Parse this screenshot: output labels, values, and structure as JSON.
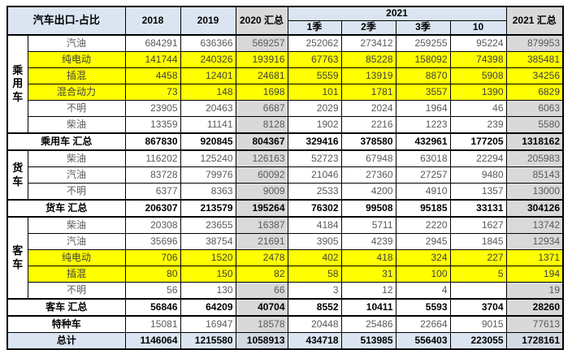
{
  "colors": {
    "header_blue": "#dbe5f1",
    "summary_gray": "#d9d9d9",
    "highlight_yellow": "#ffff00",
    "grand_total_blue": "#dbe5f1",
    "grand_total_gray_blue": "#d3d9e2",
    "border_black": "#000000",
    "body_text_gray": "#595959"
  },
  "chart_data": {
    "type": "table",
    "title": "汽车出口-占比",
    "header": {
      "title_cell": "汽车出口-占比",
      "year_2018": "2018",
      "year_2019": "2019",
      "total_2020": "2020 汇总",
      "group_2021": "2021",
      "subcols_2021": [
        "1季",
        "2季",
        "3季",
        "10"
      ],
      "total_2021": "2021 汇总"
    },
    "column_keys": [
      "2018",
      "2019",
      "2020汇总",
      "2021-1季",
      "2021-2季",
      "2021-3季",
      "2021-10",
      "2021汇总"
    ],
    "sections": [
      {
        "group": "乘用车",
        "rows": [
          {
            "label": "汽油",
            "highlight": false,
            "values": [
              "684291",
              "636366",
              "569257",
              "252062",
              "273412",
              "259255",
              "95224",
              "879953"
            ]
          },
          {
            "label": "纯电动",
            "highlight": true,
            "values": [
              "141744",
              "240326",
              "193916",
              "67763",
              "85228",
              "158092",
              "74398",
              "385481"
            ]
          },
          {
            "label": "插混",
            "highlight": true,
            "values": [
              "4458",
              "12401",
              "24681",
              "5559",
              "13919",
              "8870",
              "5908",
              "34256"
            ]
          },
          {
            "label": "混合动力",
            "highlight": true,
            "values": [
              "73",
              "148",
              "1698",
              "101",
              "1781",
              "3557",
              "1390",
              "6829"
            ]
          },
          {
            "label": "不明",
            "highlight": false,
            "values": [
              "23905",
              "20463",
              "6687",
              "2029",
              "2024",
              "1964",
              "46",
              "6063"
            ]
          },
          {
            "label": "柴油",
            "highlight": false,
            "values": [
              "13359",
              "11141",
              "8128",
              "1902",
              "2216",
              "1223",
              "239",
              "5580"
            ]
          }
        ],
        "total": {
          "label": "乘用车 汇总",
          "values": [
            "867830",
            "920845",
            "804367",
            "329416",
            "378580",
            "432961",
            "177205",
            "1318162"
          ]
        }
      },
      {
        "group": "货车",
        "rows": [
          {
            "label": "柴油",
            "highlight": false,
            "values": [
              "116202",
              "125240",
              "126163",
              "52723",
              "67948",
              "63018",
              "22294",
              "205983"
            ]
          },
          {
            "label": "汽油",
            "highlight": false,
            "values": [
              "83728",
              "79976",
              "60092",
              "21046",
              "27360",
              "27257",
              "9480",
              "85143"
            ]
          },
          {
            "label": "不明",
            "highlight": false,
            "values": [
              "6377",
              "8363",
              "9009",
              "2533",
              "4200",
              "4910",
              "1357",
              "13000"
            ]
          }
        ],
        "total": {
          "label": "货车 汇总",
          "values": [
            "206307",
            "213579",
            "195264",
            "76302",
            "99508",
            "95185",
            "33131",
            "304126"
          ]
        }
      },
      {
        "group": "客车",
        "rows": [
          {
            "label": "柴油",
            "highlight": false,
            "values": [
              "20308",
              "23655",
              "16387",
              "4184",
              "5711",
              "2220",
              "1627",
              "13742"
            ]
          },
          {
            "label": "汽油",
            "highlight": false,
            "values": [
              "35696",
              "38754",
              "21691",
              "3905",
              "4239",
              "2945",
              "1845",
              "12934"
            ]
          },
          {
            "label": "纯电动",
            "highlight": true,
            "values": [
              "706",
              "1520",
              "2478",
              "402",
              "418",
              "324",
              "227",
              "1371"
            ]
          },
          {
            "label": "插混",
            "highlight": true,
            "values": [
              "80",
              "150",
              "82",
              "58",
              "31",
              "100",
              "5",
              "194"
            ]
          },
          {
            "label": "不明",
            "highlight": false,
            "values": [
              "56",
              "130",
              "66",
              "3",
              "12",
              "4",
              "",
              "19"
            ]
          }
        ],
        "total": {
          "label": "客车 汇总",
          "values": [
            "56846",
            "64209",
            "40704",
            "8552",
            "10411",
            "5593",
            "3704",
            "28260"
          ]
        }
      }
    ],
    "special_row": {
      "label": "特种车",
      "values": [
        "15081",
        "16947",
        "18578",
        "20448",
        "25486",
        "22664",
        "9015",
        "77613"
      ]
    },
    "grand_total": {
      "label": "总计",
      "values": [
        "1146064",
        "1215580",
        "1058913",
        "434718",
        "513985",
        "556403",
        "223055",
        "1728161"
      ]
    }
  }
}
